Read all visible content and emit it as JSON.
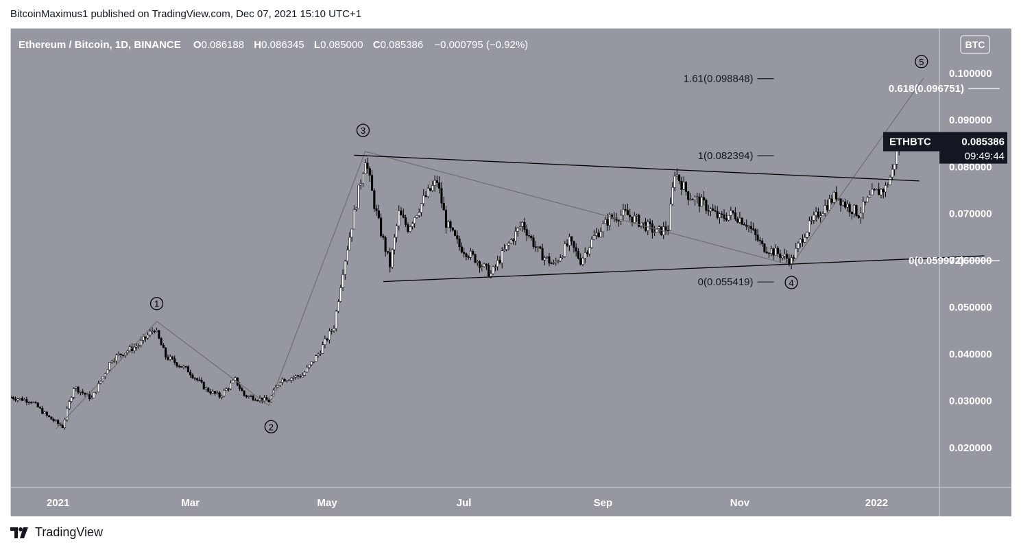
{
  "header": {
    "published": "BitcoinMaximus1 published on TradingView.com, Dec 07, 2021 15:10 UTC+1"
  },
  "footer": {
    "brand": "TradingView"
  },
  "colors": {
    "chart_bg": "#9598a1",
    "candle_up": "#ffffff",
    "candle_down": "#000000",
    "trendline": "#000000",
    "wave_line": "#6f6f6f",
    "label_bg": "#131722"
  },
  "chart_data": {
    "type": "candlestick",
    "symbol_line": {
      "name": "Ethereum / Bitcoin, 1D, BINANCE",
      "o_label": "O",
      "o": "0.086188",
      "h_label": "H",
      "h": "0.086345",
      "l_label": "L",
      "l": "0.085000",
      "c_label": "C",
      "c": "0.085386",
      "change": "−0.000795 (−0.92%)"
    },
    "currency_badge": "BTC",
    "ylim": [
      0.0115,
      0.1095
    ],
    "y_ticks": [
      "0.020000",
      "0.030000",
      "0.040000",
      "0.050000",
      "0.060000",
      "0.070000",
      "0.080000",
      "0.090000",
      "0.100000"
    ],
    "y_tick_values": [
      0.02,
      0.03,
      0.04,
      0.05,
      0.06,
      0.07,
      0.08,
      0.09,
      0.1
    ],
    "x_ticks": [
      {
        "label": "2021",
        "date": "2021-01-01"
      },
      {
        "label": "Mar",
        "date": "2021-03-01"
      },
      {
        "label": "May",
        "date": "2021-05-01"
      },
      {
        "label": "Jul",
        "date": "2021-07-01"
      },
      {
        "label": "Sep",
        "date": "2021-09-01"
      },
      {
        "label": "Nov",
        "date": "2021-11-01"
      },
      {
        "label": "2022",
        "date": "2022-01-01"
      }
    ],
    "x_range": [
      "2020-12-11",
      "2022-01-29"
    ],
    "price_marker": {
      "label": "ETHBTC",
      "value": "0.085386",
      "countdown": "09:49:44",
      "price": 0.085386
    },
    "price_anchors": [
      {
        "date": "2020-12-11",
        "price": 0.0308
      },
      {
        "date": "2020-12-20",
        "price": 0.03
      },
      {
        "date": "2020-12-27",
        "price": 0.0268
      },
      {
        "date": "2021-01-03",
        "price": 0.0245
      },
      {
        "date": "2021-01-08",
        "price": 0.033
      },
      {
        "date": "2021-01-16",
        "price": 0.0305
      },
      {
        "date": "2021-01-25",
        "price": 0.039
      },
      {
        "date": "2021-02-06",
        "price": 0.042
      },
      {
        "date": "2021-02-13",
        "price": 0.0455
      },
      {
        "date": "2021-02-18",
        "price": 0.0395
      },
      {
        "date": "2021-02-28",
        "price": 0.0365
      },
      {
        "date": "2021-03-08",
        "price": 0.0325
      },
      {
        "date": "2021-03-14",
        "price": 0.031
      },
      {
        "date": "2021-03-21",
        "price": 0.0345
      },
      {
        "date": "2021-03-25",
        "price": 0.0312
      },
      {
        "date": "2021-04-05",
        "price": 0.03
      },
      {
        "date": "2021-04-10",
        "price": 0.0345
      },
      {
        "date": "2021-04-20",
        "price": 0.0355
      },
      {
        "date": "2021-04-27",
        "price": 0.04
      },
      {
        "date": "2021-05-04",
        "price": 0.046
      },
      {
        "date": "2021-05-08",
        "price": 0.058
      },
      {
        "date": "2021-05-13",
        "price": 0.07
      },
      {
        "date": "2021-05-18",
        "price": 0.082
      },
      {
        "date": "2021-05-22",
        "price": 0.072
      },
      {
        "date": "2021-05-25",
        "price": 0.066
      },
      {
        "date": "2021-05-29",
        "price": 0.059
      },
      {
        "date": "2021-06-02",
        "price": 0.07
      },
      {
        "date": "2021-06-06",
        "price": 0.067
      },
      {
        "date": "2021-06-13",
        "price": 0.073
      },
      {
        "date": "2021-06-19",
        "price": 0.077
      },
      {
        "date": "2021-06-23",
        "price": 0.068
      },
      {
        "date": "2021-06-29",
        "price": 0.063
      },
      {
        "date": "2021-07-07",
        "price": 0.06
      },
      {
        "date": "2021-07-13",
        "price": 0.057
      },
      {
        "date": "2021-07-19",
        "price": 0.062
      },
      {
        "date": "2021-07-27",
        "price": 0.068
      },
      {
        "date": "2021-08-03",
        "price": 0.062
      },
      {
        "date": "2021-08-10",
        "price": 0.059
      },
      {
        "date": "2021-08-17",
        "price": 0.064
      },
      {
        "date": "2021-08-22",
        "price": 0.06
      },
      {
        "date": "2021-08-28",
        "price": 0.065
      },
      {
        "date": "2021-09-04",
        "price": 0.069
      },
      {
        "date": "2021-09-11",
        "price": 0.07
      },
      {
        "date": "2021-09-18",
        "price": 0.068
      },
      {
        "date": "2021-09-25",
        "price": 0.066
      },
      {
        "date": "2021-09-30",
        "price": 0.067
      },
      {
        "date": "2021-10-03",
        "price": 0.079
      },
      {
        "date": "2021-10-09",
        "price": 0.074
      },
      {
        "date": "2021-10-16",
        "price": 0.072
      },
      {
        "date": "2021-10-23",
        "price": 0.069
      },
      {
        "date": "2021-10-29",
        "price": 0.07
      },
      {
        "date": "2021-11-04",
        "price": 0.068
      },
      {
        "date": "2021-11-11",
        "price": 0.063
      },
      {
        "date": "2021-11-18",
        "price": 0.0615
      },
      {
        "date": "2021-11-24",
        "price": 0.06
      },
      {
        "date": "2021-11-30",
        "price": 0.066
      },
      {
        "date": "2021-12-06",
        "price": 0.07
      },
      {
        "date": "2021-12-14",
        "price": 0.074
      },
      {
        "date": "2021-12-18",
        "price": 0.072
      },
      {
        "date": "2021-12-24",
        "price": 0.07
      },
      {
        "date": "2021-12-30",
        "price": 0.074
      },
      {
        "date": "2022-01-05",
        "price": 0.0755
      },
      {
        "date": "2022-01-08",
        "price": 0.079
      },
      {
        "date": "2022-01-11",
        "price": 0.0858
      }
    ],
    "trendlines": [
      {
        "name": "triangle-upper",
        "points": [
          {
            "date": "2021-05-13",
            "price": 0.0825
          },
          {
            "date": "2022-01-20",
            "price": 0.077
          }
        ]
      },
      {
        "name": "triangle-lower",
        "points": [
          {
            "date": "2021-05-26",
            "price": 0.0555
          },
          {
            "date": "2022-02-18",
            "price": 0.061
          }
        ]
      }
    ],
    "wave_path": [
      {
        "date": "2020-12-31",
        "price": 0.024
      },
      {
        "date": "2021-02-14",
        "price": 0.047
      },
      {
        "date": "2021-04-05",
        "price": 0.029
      },
      {
        "date": "2021-05-18",
        "price": 0.0833
      },
      {
        "date": "2021-11-24",
        "price": 0.059
      },
      {
        "date": "2022-01-22",
        "price": 0.099
      }
    ],
    "wave_labels": [
      {
        "label": "1",
        "date": "2021-02-14",
        "price": 0.0508
      },
      {
        "label": "2",
        "date": "2021-04-06",
        "price": 0.0245
      },
      {
        "label": "3",
        "date": "2021-05-17",
        "price": 0.0878
      },
      {
        "label": "4",
        "date": "2021-11-24",
        "price": 0.0553
      },
      {
        "label": "5",
        "date": "2022-01-21",
        "price": 0.1025
      }
    ],
    "fib_levels": [
      {
        "label": "1.61(0.098848)",
        "price": 0.098848,
        "date": "2021-11-07",
        "light": false
      },
      {
        "label": "1(0.082394)",
        "price": 0.082394,
        "date": "2021-11-07",
        "light": false
      },
      {
        "label": "0(0.055419)",
        "price": 0.055419,
        "date": "2021-11-07",
        "light": false
      },
      {
        "label": "0.618(0.096751)",
        "price": 0.096751,
        "date": "2022-02-09",
        "light": true
      },
      {
        "label": "0(0.059972)",
        "price": 0.059972,
        "date": "2022-02-09",
        "light": true
      }
    ]
  }
}
